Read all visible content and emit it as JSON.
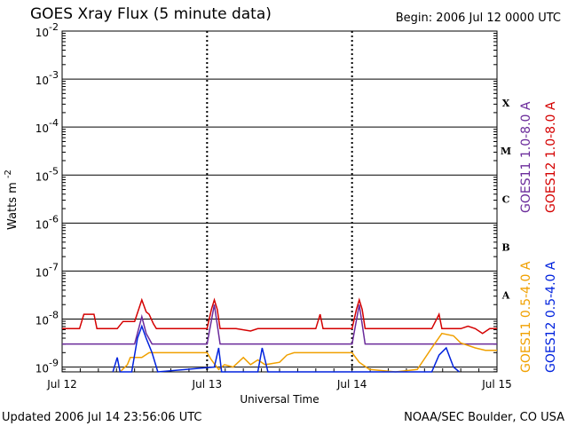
{
  "header": {
    "title": "GOES Xray Flux (5 minute data)",
    "begin": "Begin:  2006 Jul 12 0000 UTC"
  },
  "footer": {
    "updated": "Updated 2006 Jul 14 23:56:06 UTC",
    "credit": "NOAA/SEC Boulder, CO USA"
  },
  "chart_data": {
    "type": "line",
    "title": "GOES Xray Flux (5 minute data)",
    "xlabel": "Universal Time",
    "ylabel_base": "Watts m",
    "ylabel_exp": "-2",
    "x_unit": "days since 2006 Jul 12 0000 UTC",
    "xlim": [
      0,
      3
    ],
    "ylim_exp": [
      -9.1,
      -2
    ],
    "y_scale": "log",
    "x_ticks": [
      {
        "value": 0,
        "label": "Jul 12"
      },
      {
        "value": 1,
        "label": "Jul 13"
      },
      {
        "value": 2,
        "label": "Jul 14"
      },
      {
        "value": 3,
        "label": "Jul 15"
      }
    ],
    "y_ticks": [
      {
        "exp": -2,
        "base": "10",
        "sup": "-2"
      },
      {
        "exp": -3,
        "base": "10",
        "sup": "-3"
      },
      {
        "exp": -4,
        "base": "10",
        "sup": "-4"
      },
      {
        "exp": -5,
        "base": "10",
        "sup": "-5"
      },
      {
        "exp": -6,
        "base": "10",
        "sup": "-6"
      },
      {
        "exp": -7,
        "base": "10",
        "sup": "-7"
      },
      {
        "exp": -8,
        "base": "10",
        "sup": "-8"
      },
      {
        "exp": -9,
        "base": "10",
        "sup": "-9"
      }
    ],
    "flare_classes": [
      {
        "label": "X",
        "exp": -3.5
      },
      {
        "label": "M",
        "exp": -4.5
      },
      {
        "label": "C",
        "exp": -5.5
      },
      {
        "label": "B",
        "exp": -6.5
      },
      {
        "label": "A",
        "exp": -7.5
      }
    ],
    "legend_right_top": [
      {
        "name": "GOES11 1.0-8.0 A",
        "color": "#6a2a9a"
      },
      {
        "name": "GOES12 1.0-8.0 A",
        "color": "#d40000"
      }
    ],
    "legend_right_bottom": [
      {
        "name": "GOES11 0.5-4.0 A",
        "color": "#f0a000"
      },
      {
        "name": "GOES12 0.5-4.0 A",
        "color": "#0022dd"
      }
    ],
    "series": [
      {
        "name": "GOES12 1.0-8.0 A",
        "color": "#d40000",
        "points": [
          [
            0,
            -8.2
          ],
          [
            0.12,
            -8.2
          ],
          [
            0.15,
            -7.9
          ],
          [
            0.22,
            -7.9
          ],
          [
            0.24,
            -8.2
          ],
          [
            0.38,
            -8.2
          ],
          [
            0.42,
            -8.05
          ],
          [
            0.5,
            -8.05
          ],
          [
            0.55,
            -7.6
          ],
          [
            0.58,
            -7.85
          ],
          [
            0.6,
            -7.9
          ],
          [
            0.63,
            -8.1
          ],
          [
            0.65,
            -8.2
          ],
          [
            1.0,
            -8.2
          ],
          [
            1.03,
            -7.8
          ],
          [
            1.05,
            -7.6
          ],
          [
            1.07,
            -7.8
          ],
          [
            1.09,
            -8.2
          ],
          [
            1.2,
            -8.2
          ],
          [
            1.3,
            -8.25
          ],
          [
            1.35,
            -8.2
          ],
          [
            1.75,
            -8.2
          ],
          [
            1.78,
            -7.9
          ],
          [
            1.8,
            -8.2
          ],
          [
            2.0,
            -8.2
          ],
          [
            2.03,
            -7.8
          ],
          [
            2.05,
            -7.6
          ],
          [
            2.07,
            -7.8
          ],
          [
            2.09,
            -8.2
          ],
          [
            2.55,
            -8.2
          ],
          [
            2.6,
            -7.9
          ],
          [
            2.62,
            -8.2
          ],
          [
            2.75,
            -8.2
          ],
          [
            2.8,
            -8.15
          ],
          [
            2.85,
            -8.2
          ],
          [
            2.9,
            -8.3
          ],
          [
            2.95,
            -8.2
          ],
          [
            3.0,
            -8.2
          ]
        ]
      },
      {
        "name": "GOES11 1.0-8.0 A",
        "color": "#6a2a9a",
        "points": [
          [
            0,
            -8.52
          ],
          [
            0.5,
            -8.52
          ],
          [
            0.55,
            -7.95
          ],
          [
            0.58,
            -8.3
          ],
          [
            0.62,
            -8.52
          ],
          [
            1.0,
            -8.52
          ],
          [
            1.05,
            -7.7
          ],
          [
            1.09,
            -8.52
          ],
          [
            2.0,
            -8.52
          ],
          [
            2.05,
            -7.7
          ],
          [
            2.09,
            -8.52
          ],
          [
            3.0,
            -8.52
          ]
        ]
      },
      {
        "name": "GOES11 0.5-4.0 A",
        "color": "#f0a000",
        "points": [
          [
            0.4,
            -9.1
          ],
          [
            0.45,
            -8.95
          ],
          [
            0.47,
            -8.8
          ],
          [
            0.55,
            -8.8
          ],
          [
            0.6,
            -8.7
          ],
          [
            0.7,
            -8.7
          ],
          [
            1.0,
            -8.7
          ],
          [
            1.03,
            -8.85
          ],
          [
            1.08,
            -9.05
          ],
          [
            1.12,
            -8.95
          ],
          [
            1.18,
            -9.0
          ],
          [
            1.25,
            -8.8
          ],
          [
            1.3,
            -8.95
          ],
          [
            1.35,
            -8.85
          ],
          [
            1.4,
            -8.95
          ],
          [
            1.5,
            -8.9
          ],
          [
            1.55,
            -8.75
          ],
          [
            1.6,
            -8.7
          ],
          [
            1.9,
            -8.7
          ],
          [
            2.0,
            -8.7
          ],
          [
            2.05,
            -8.9
          ],
          [
            2.12,
            -9.05
          ],
          [
            2.3,
            -9.1
          ],
          [
            2.45,
            -9.05
          ],
          [
            2.55,
            -8.6
          ],
          [
            2.62,
            -8.3
          ],
          [
            2.7,
            -8.35
          ],
          [
            2.75,
            -8.5
          ],
          [
            2.85,
            -8.6
          ],
          [
            2.92,
            -8.65
          ],
          [
            3.0,
            -8.65
          ]
        ]
      },
      {
        "name": "GOES12 0.5-4.0 A",
        "color": "#0022dd",
        "points": [
          [
            0.35,
            -9.1
          ],
          [
            0.38,
            -8.8
          ],
          [
            0.4,
            -9.1
          ],
          [
            0.48,
            -9.1
          ],
          [
            0.52,
            -8.4
          ],
          [
            0.55,
            -8.15
          ],
          [
            0.58,
            -8.4
          ],
          [
            0.62,
            -8.7
          ],
          [
            0.66,
            -9.1
          ],
          [
            1.05,
            -9.0
          ],
          [
            1.08,
            -8.6
          ],
          [
            1.1,
            -9.1
          ],
          [
            1.35,
            -9.1
          ],
          [
            1.38,
            -8.6
          ],
          [
            1.42,
            -9.1
          ],
          [
            2.55,
            -9.1
          ],
          [
            2.6,
            -8.75
          ],
          [
            2.65,
            -8.6
          ],
          [
            2.7,
            -9.0
          ],
          [
            2.74,
            -9.1
          ]
        ]
      }
    ]
  }
}
